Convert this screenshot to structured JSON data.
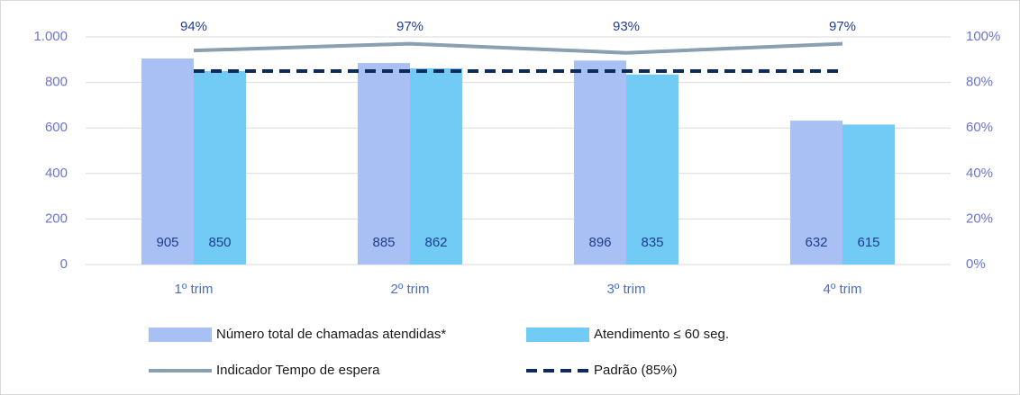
{
  "chart_data": {
    "type": "bar",
    "categories": [
      "1º trim",
      "2º trim",
      "3º trim",
      "4º trim"
    ],
    "series": [
      {
        "name": "Número total de chamadas atendidas*",
        "color": "#a9c0f5",
        "values": [
          905,
          885,
          896,
          632
        ]
      },
      {
        "name": "Atendimento ≤ 60 seg.",
        "color": "#72cbf5",
        "values": [
          850,
          862,
          835,
          615
        ]
      },
      {
        "name": "Indicador Tempo de espera",
        "type": "line",
        "axis": "y2",
        "color": "#8a9fb0",
        "values": [
          94,
          97,
          93,
          97
        ],
        "value_labels": [
          "94%",
          "97%",
          "93%",
          "97%"
        ]
      },
      {
        "name": "Padrão (85%)",
        "type": "line",
        "dashed": true,
        "axis": "y2",
        "color": "#0d2a5c",
        "values": [
          85,
          85,
          85,
          85
        ]
      }
    ],
    "ylim": [
      0,
      1000
    ],
    "yticks": [
      0,
      200,
      400,
      600,
      800,
      {
        "value": 1000,
        "label": "1.000"
      }
    ],
    "y2lim": [
      0,
      100
    ],
    "y2ticks": [
      {
        "value": 0,
        "label": "0%"
      },
      {
        "value": 20,
        "label": "20%"
      },
      {
        "value": 40,
        "label": "40%"
      },
      {
        "value": 60,
        "label": "60%"
      },
      {
        "value": 80,
        "label": "80%"
      },
      {
        "value": 100,
        "label": "100%"
      }
    ],
    "grid": true,
    "legend": "bottom"
  }
}
